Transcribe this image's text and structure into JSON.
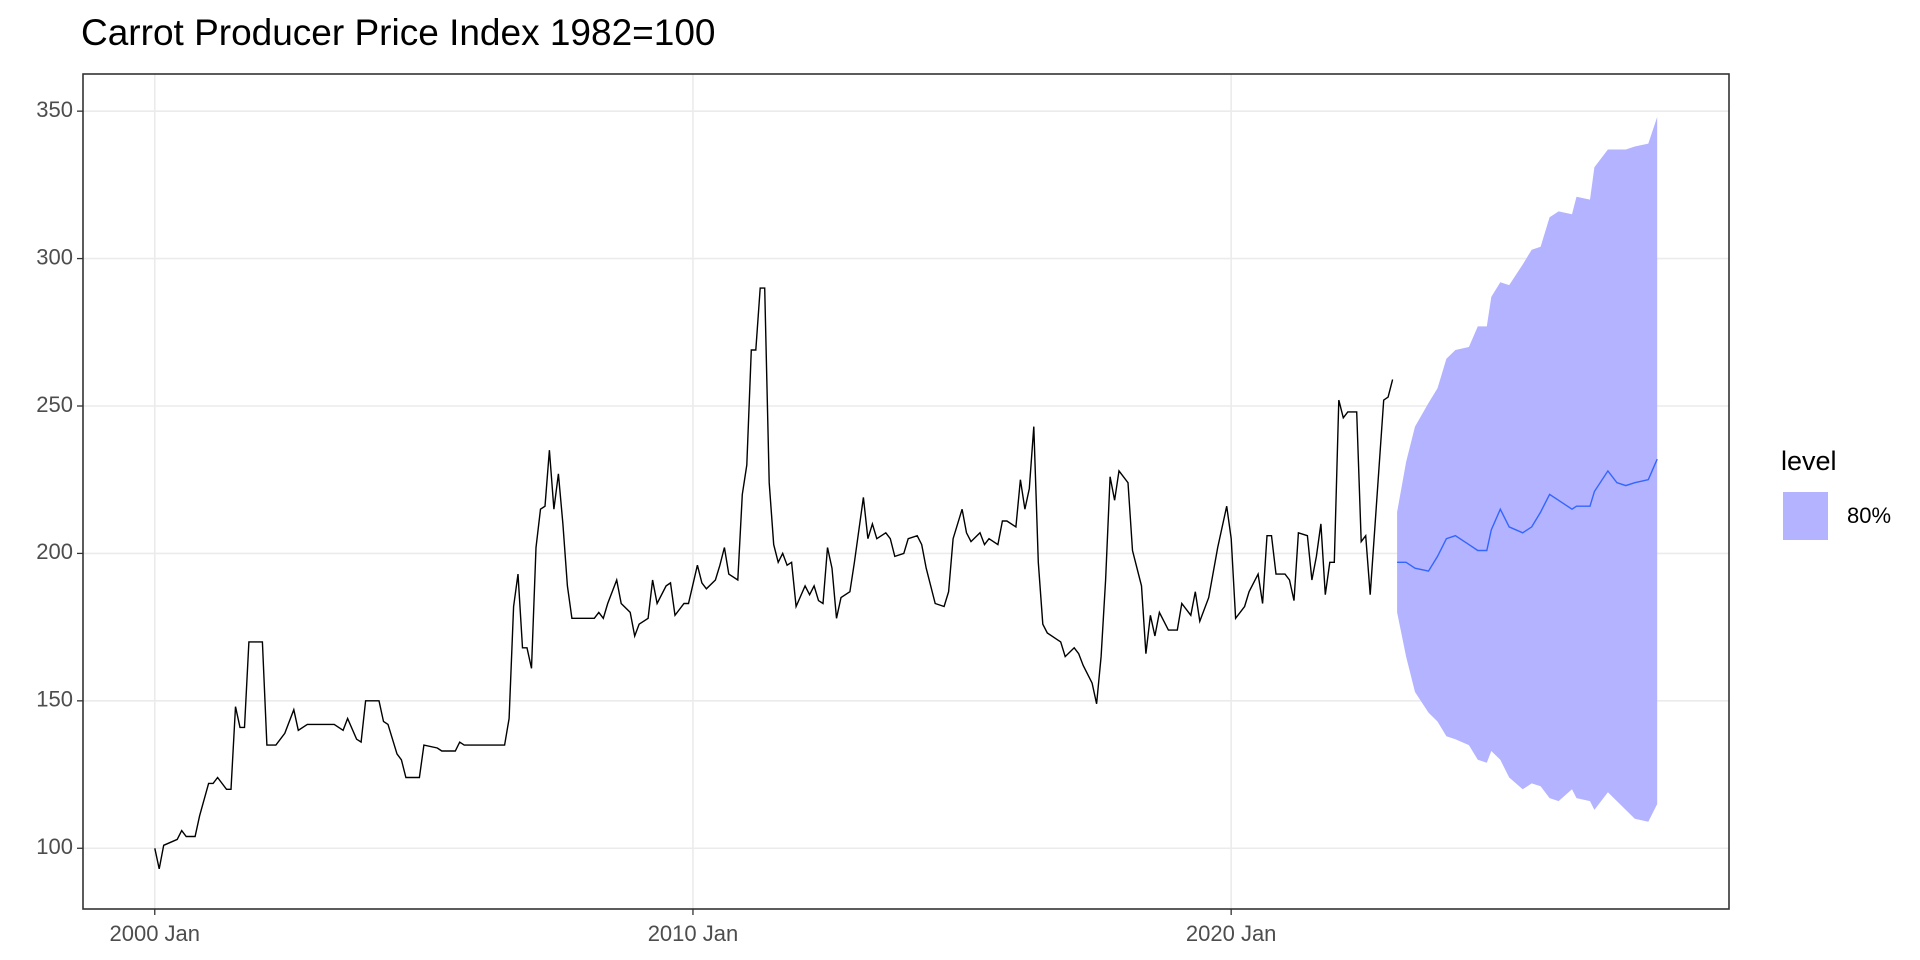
{
  "chart_data": {
    "type": "line",
    "title": "Carrot Producer Price Index 1982=100",
    "x": [
      "2000-01",
      "2000-02",
      "2000-03",
      "2000-06",
      "2000-07",
      "2000-08",
      "2000-10",
      "2000-11",
      "2001-01",
      "2001-02",
      "2001-03",
      "2001-05",
      "2001-06",
      "2001-07",
      "2001-08",
      "2001-09",
      "2001-10",
      "2002-01",
      "2002-02",
      "2002-04",
      "2002-06",
      "2002-08",
      "2002-09",
      "2002-11",
      "2003-05",
      "2003-07",
      "2003-08",
      "2003-10",
      "2003-11",
      "2003-12",
      "2004-03",
      "2004-04",
      "2004-05",
      "2004-07",
      "2004-08",
      "2004-09",
      "2004-12",
      "2005-01",
      "2005-04",
      "2005-05",
      "2005-08",
      "2005-09",
      "2005-10",
      "2006-07",
      "2006-08",
      "2006-09",
      "2006-10",
      "2006-11",
      "2006-12",
      "2007-01",
      "2007-02",
      "2007-03",
      "2007-04",
      "2007-05",
      "2007-06",
      "2007-07",
      "2007-08",
      "2007-09",
      "2007-10",
      "2008-01",
      "2008-03",
      "2008-04",
      "2008-05",
      "2008-06",
      "2008-08",
      "2008-09",
      "2008-11",
      "2008-12",
      "2009-01",
      "2009-03",
      "2009-04",
      "2009-05",
      "2009-07",
      "2009-08",
      "2009-09",
      "2009-11",
      "2009-12",
      "2010-02",
      "2010-03",
      "2010-04",
      "2010-06",
      "2010-07",
      "2010-08",
      "2010-09",
      "2010-11",
      "2010-12",
      "2011-01",
      "2011-02",
      "2011-03",
      "2011-04",
      "2011-05",
      "2011-06",
      "2011-07",
      "2011-08",
      "2011-09",
      "2011-10",
      "2011-11",
      "2011-12",
      "2012-02",
      "2012-03",
      "2012-04",
      "2012-05",
      "2012-06",
      "2012-07",
      "2012-08",
      "2012-09",
      "2012-10",
      "2012-12",
      "2013-01",
      "2013-03",
      "2013-04",
      "2013-05",
      "2013-06",
      "2013-08",
      "2013-09",
      "2013-10",
      "2013-12",
      "2014-01",
      "2014-03",
      "2014-04",
      "2014-05",
      "2014-07",
      "2014-09",
      "2014-10",
      "2014-11",
      "2015-01",
      "2015-02",
      "2015-03",
      "2015-05",
      "2015-06",
      "2015-07",
      "2015-09",
      "2015-10",
      "2015-11",
      "2016-01",
      "2016-02",
      "2016-03",
      "2016-04",
      "2016-05",
      "2016-06",
      "2016-07",
      "2016-08",
      "2016-10",
      "2016-11",
      "2016-12",
      "2017-02",
      "2017-03",
      "2017-04",
      "2017-06",
      "2017-07",
      "2017-08",
      "2017-09",
      "2017-10",
      "2017-11",
      "2017-12",
      "2018-02",
      "2018-03",
      "2018-05",
      "2018-06",
      "2018-07",
      "2018-08",
      "2018-09",
      "2018-11",
      "2019-01",
      "2019-02",
      "2019-04",
      "2019-05",
      "2019-06",
      "2019-08",
      "2019-10",
      "2019-12",
      "2020-01",
      "2020-02",
      "2020-04",
      "2020-05",
      "2020-07",
      "2020-08",
      "2020-09",
      "2020-10",
      "2020-11",
      "2021-01",
      "2021-02",
      "2021-03",
      "2021-04",
      "2021-06",
      "2021-07",
      "2021-08",
      "2021-09",
      "2021-10",
      "2021-11",
      "2021-12",
      "2022-01",
      "2022-02",
      "2022-03",
      "2022-05",
      "2022-06",
      "2022-07",
      "2022-08",
      "2022-11",
      "2022-12",
      "2023-01"
    ],
    "values": [
      100,
      93,
      101,
      103,
      106,
      104,
      104,
      111,
      122,
      122,
      124,
      120,
      120,
      148,
      141,
      141,
      170,
      170,
      135,
      135,
      139,
      147,
      140,
      142,
      142,
      140,
      144,
      137,
      136,
      150,
      150,
      143,
      142,
      132,
      130,
      124,
      124,
      135,
      134,
      133,
      133,
      136,
      135,
      135,
      144,
      182,
      193,
      168,
      168,
      161,
      202,
      215,
      216,
      235,
      215,
      227,
      210,
      189,
      178,
      178,
      178,
      180,
      178,
      183,
      191,
      183,
      180,
      172,
      176,
      178,
      191,
      183,
      189,
      190,
      179,
      183,
      183,
      196,
      190,
      188,
      191,
      196,
      202,
      193,
      191,
      220,
      230,
      269,
      269,
      290,
      290,
      224,
      203,
      197,
      200,
      196,
      197,
      182,
      189,
      186,
      189,
      184,
      183,
      202,
      195,
      178,
      185,
      187,
      197,
      219,
      205,
      210,
      205,
      207,
      205,
      199,
      200,
      205,
      206,
      203,
      195,
      183,
      182,
      187,
      205,
      215,
      207,
      204,
      207,
      203,
      205,
      203,
      211,
      211,
      209,
      225,
      215,
      222,
      243,
      197,
      176,
      173,
      171,
      170,
      165,
      168,
      166,
      162,
      156,
      149,
      165,
      191,
      226,
      218,
      228,
      224,
      201,
      189,
      166,
      179,
      172,
      180,
      174,
      174,
      183,
      179,
      187,
      177,
      185,
      202,
      216,
      205,
      178,
      182,
      187,
      193,
      183,
      206,
      206,
      193,
      193,
      191,
      184,
      207,
      206,
      191,
      199,
      210,
      186,
      197,
      197,
      252,
      246,
      248,
      248,
      204,
      206,
      186,
      252,
      253,
      259
    ],
    "color": "#000000",
    "forecast": {
      "x": [
        "2023-02",
        "2023-04",
        "2023-06",
        "2023-09",
        "2023-11",
        "2024-01",
        "2024-03",
        "2024-06",
        "2024-08",
        "2024-10",
        "2024-11",
        "2025-01",
        "2025-03",
        "2025-06",
        "2025-08",
        "2025-10",
        "2025-12",
        "2026-02",
        "2026-05",
        "2026-06",
        "2026-09",
        "2026-10",
        "2027-01",
        "2027-03",
        "2027-05",
        "2027-07",
        "2027-10",
        "2027-12"
      ],
      "values": [
        197,
        197,
        195,
        194,
        199,
        205,
        206,
        203,
        201,
        201,
        208,
        215,
        209,
        207,
        209,
        214,
        220,
        218,
        215,
        216,
        216,
        221,
        228,
        224,
        223,
        224,
        225,
        232
      ],
      "upper": [
        214,
        231,
        243,
        251,
        256,
        266,
        269,
        270,
        277,
        277,
        287,
        292,
        291,
        298,
        303,
        304,
        314,
        316,
        315,
        321,
        320,
        331,
        337,
        337,
        337,
        338,
        339,
        348
      ],
      "lower": [
        180,
        165,
        153,
        146,
        143,
        138,
        137,
        135,
        130,
        129,
        133,
        130,
        124,
        120,
        122,
        121,
        117,
        116,
        120,
        117,
        116,
        113,
        119,
        116,
        113,
        110,
        109,
        115
      ],
      "color": "#3366ff",
      "band_color": "#b3b3ff"
    },
    "legend": {
      "title": "level",
      "entries": [
        "80%"
      ],
      "position": "right"
    },
    "xlim": [
      "1998-09",
      "2029-04"
    ],
    "xticks": [
      {
        "value": "2000-01",
        "label": "2000 Jan"
      },
      {
        "value": "2010-01",
        "label": "2010 Jan"
      },
      {
        "value": "2020-01",
        "label": "2020 Jan"
      }
    ],
    "ylim": [
      79.4,
      362.6
    ],
    "yticks": [
      100,
      150,
      200,
      250,
      300,
      350
    ],
    "grid": true
  }
}
